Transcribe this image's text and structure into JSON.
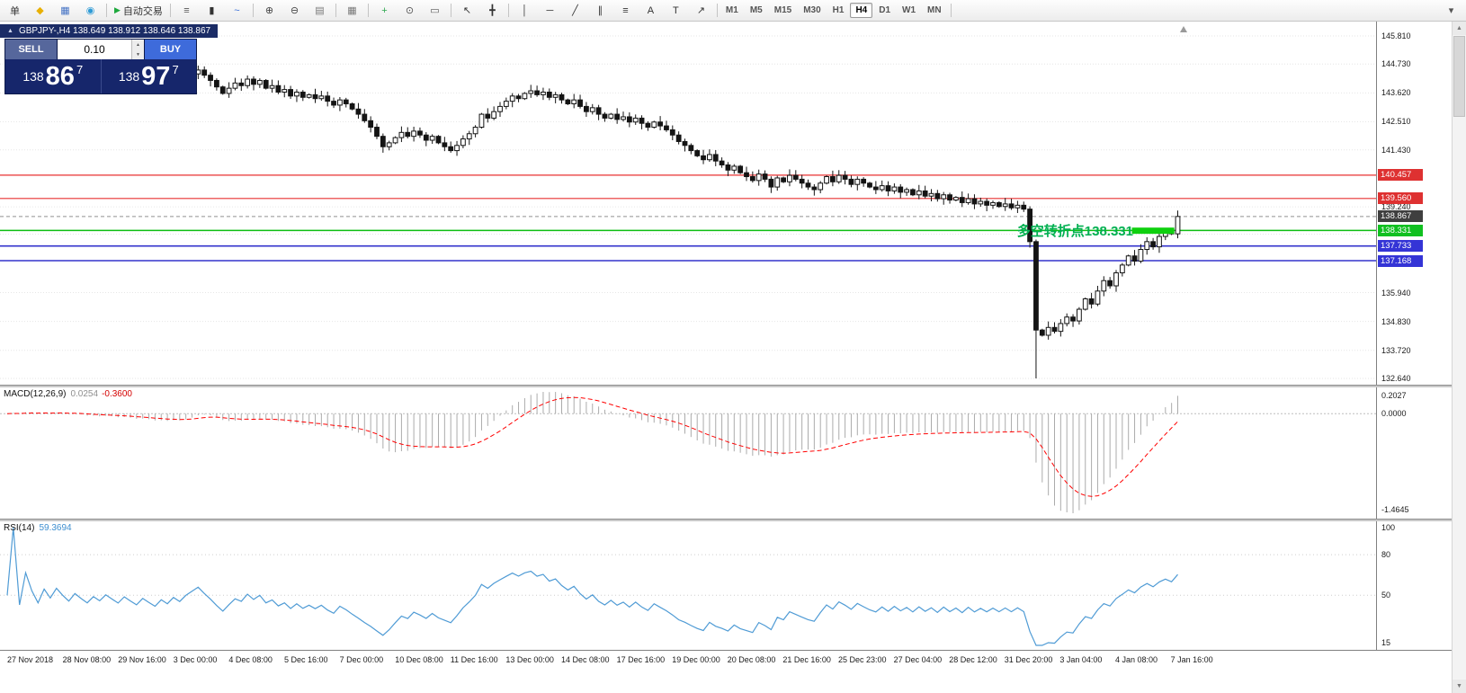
{
  "window": {
    "chart_title": "GBPJPY-,H4  138.649 138.912 138.646 138.867",
    "collapse_icon": "▲"
  },
  "toolbar": {
    "items": [
      {
        "n": "new-order-button",
        "t": "text",
        "g": "单"
      },
      {
        "n": "new-order-icon",
        "g": "◆",
        "c": "#E8B004"
      },
      {
        "n": "chart-window-icon",
        "g": "▦",
        "c": "#4472C4"
      },
      {
        "n": "profiles-icon",
        "g": "◉",
        "c": "#2E9BD6"
      },
      {
        "t": "sep"
      },
      {
        "n": "autotrading-button",
        "t": "text",
        "g": "自动交易",
        "play": "▶"
      },
      {
        "t": "sep"
      },
      {
        "n": "bar-chart-icon",
        "g": "≡",
        "c": "#555555"
      },
      {
        "n": "candlestick-chart-icon",
        "g": "▮",
        "c": "#333333"
      },
      {
        "n": "line-chart-icon",
        "g": "~",
        "c": "#3A6FD8"
      },
      {
        "t": "sep"
      },
      {
        "n": "zoom-in-icon",
        "g": "⊕",
        "c": "#444444"
      },
      {
        "n": "zoom-out-icon",
        "g": "⊖",
        "c": "#444444"
      },
      {
        "n": "auto-arrange-icon",
        "g": "▤",
        "c": "#777777"
      },
      {
        "t": "sep"
      },
      {
        "n": "tile-windows-icon",
        "g": "▦",
        "c": "#777777"
      },
      {
        "t": "sep"
      },
      {
        "n": "add-indicator-icon",
        "g": "+",
        "c": "#2FA84F"
      },
      {
        "n": "cycles-icon",
        "g": "⊙",
        "c": "#555555"
      },
      {
        "n": "template-icon",
        "g": "▭",
        "c": "#555555"
      },
      {
        "t": "sep"
      },
      {
        "n": "cursor-icon",
        "g": "↖",
        "c": "#333333"
      },
      {
        "n": "crosshair-icon",
        "g": "╋",
        "c": "#333333"
      },
      {
        "t": "sep"
      },
      {
        "n": "vertical-line-icon",
        "g": "│",
        "c": "#333333"
      },
      {
        "n": "horizontal-line-icon",
        "g": "─",
        "c": "#333333"
      },
      {
        "n": "trendline-icon",
        "g": "╱",
        "c": "#333333"
      },
      {
        "n": "channel-icon",
        "g": "∥",
        "c": "#333333"
      },
      {
        "n": "fibonacci-icon",
        "g": "≡",
        "c": "#333333"
      },
      {
        "n": "text-tool-icon",
        "g": "A",
        "c": "#333333"
      },
      {
        "n": "label-tool-icon",
        "g": "T",
        "c": "#333333"
      },
      {
        "n": "arrows-tool-icon",
        "g": "↗",
        "c": "#333333"
      },
      {
        "t": "sep"
      }
    ],
    "timeframes": [
      "M1",
      "M5",
      "M15",
      "M30",
      "H1",
      "H4",
      "D1",
      "W1",
      "MN"
    ],
    "active_timeframe": "H4",
    "right_items": [
      {
        "n": "toolbar-overflow-icon",
        "g": "▾",
        "c": "#555555"
      }
    ]
  },
  "trade_panel": {
    "sell_label": "SELL",
    "buy_label": "BUY",
    "volume": "0.10",
    "spin_up": "▲",
    "spin_down": "▼",
    "sell_price": {
      "prefix": "138",
      "big": "86",
      "sup": "7"
    },
    "buy_price": {
      "prefix": "138",
      "big": "97",
      "sup": "7"
    }
  },
  "annotation": {
    "text": "多空转折点138.331",
    "color": "#00B050"
  },
  "indicators": {
    "macd": {
      "label": "MACD(12,26,9)",
      "value_main": "0.0254",
      "value_signal": "-0.3600",
      "scale": [
        "0.2027",
        "0.0000",
        "-1.4645"
      ]
    },
    "rsi": {
      "label": "RSI(14)",
      "value": "59.3694",
      "scale": [
        "100",
        "80",
        "50",
        "15"
      ]
    }
  },
  "price_scale": {
    "ticks": [
      "145.810",
      "144.730",
      "143.620",
      "142.510",
      "141.430",
      "139.240",
      "138.190",
      "135.940",
      "134.830",
      "133.720",
      "132.640"
    ],
    "badges": [
      {
        "text": "140.457",
        "color": "#DE3131"
      },
      {
        "text": "139.560",
        "color": "#DE3131"
      },
      {
        "text": "138.867",
        "color": "#3F3F3F"
      },
      {
        "text": "138.331",
        "color": "#10C020"
      },
      {
        "text": "137.733",
        "color": "#3434D6"
      },
      {
        "text": "137.168",
        "color": "#3434D6"
      }
    ]
  },
  "hlines": [
    {
      "price": 140.457,
      "color": "#E83030",
      "w": 1.2
    },
    {
      "price": 139.56,
      "color": "#E83030",
      "w": 1.2
    },
    {
      "price": 138.867,
      "color": "#909090",
      "w": 1,
      "dash": "4,3"
    },
    {
      "price": 138.331,
      "color": "#0EBE12",
      "w": 1.6
    },
    {
      "price": 137.733,
      "color": "#3333CC",
      "w": 1.6
    },
    {
      "price": 137.168,
      "color": "#3333CC",
      "w": 1.6
    }
  ],
  "scrollbar": {
    "up": "▲",
    "down": "▼"
  },
  "chart_data": {
    "type": "candlestick",
    "symbol": "GBPJPY-",
    "timeframe": "H4",
    "last_ohlc": {
      "open": 138.649,
      "high": 138.912,
      "low": 138.646,
      "close": 138.867
    },
    "visible_price_range": [
      132.64,
      145.81
    ],
    "closes": [
      144.4,
      144.55,
      144.35,
      144.6,
      144.45,
      144.3,
      144.5,
      144.35,
      144.55,
      144.4,
      144.25,
      144.45,
      144.3,
      144.15,
      144.35,
      144.2,
      144.4,
      144.25,
      144.1,
      144.3,
      144.15,
      144.0,
      144.2,
      144.05,
      143.9,
      144.1,
      143.95,
      144.15,
      144.0,
      144.2,
      144.35,
      144.5,
      144.3,
      144.1,
      143.85,
      143.6,
      143.8,
      144.0,
      143.9,
      144.15,
      143.95,
      144.1,
      143.8,
      143.9,
      143.65,
      143.75,
      143.5,
      143.65,
      143.45,
      143.55,
      143.4,
      143.5,
      143.3,
      143.15,
      143.35,
      143.2,
      143.0,
      142.8,
      142.55,
      142.3,
      141.95,
      141.55,
      141.7,
      141.9,
      142.1,
      141.95,
      142.15,
      142.0,
      141.8,
      141.95,
      141.7,
      141.55,
      141.4,
      141.6,
      141.85,
      142.05,
      142.3,
      142.8,
      142.65,
      142.9,
      143.1,
      143.3,
      143.5,
      143.4,
      143.6,
      143.7,
      143.55,
      143.65,
      143.45,
      143.55,
      143.35,
      143.2,
      143.35,
      143.1,
      142.9,
      143.05,
      142.8,
      142.65,
      142.8,
      142.6,
      142.7,
      142.5,
      142.65,
      142.45,
      142.3,
      142.5,
      142.35,
      142.2,
      142.0,
      141.75,
      141.6,
      141.4,
      141.2,
      141.05,
      141.25,
      141.0,
      140.85,
      140.65,
      140.8,
      140.55,
      140.4,
      140.25,
      140.5,
      140.3,
      140.0,
      140.35,
      140.2,
      140.45,
      140.3,
      140.15,
      140.0,
      139.9,
      140.15,
      140.4,
      140.2,
      140.45,
      140.3,
      140.1,
      140.3,
      140.15,
      140.0,
      139.9,
      140.05,
      139.85,
      140.0,
      139.8,
      139.9,
      139.7,
      139.85,
      139.65,
      139.75,
      139.55,
      139.7,
      139.5,
      139.6,
      139.4,
      139.55,
      139.35,
      139.45,
      139.3,
      139.4,
      139.25,
      139.35,
      139.2,
      139.3,
      139.15,
      137.9,
      134.5,
      134.3,
      134.6,
      134.45,
      134.75,
      135.0,
      134.85,
      135.3,
      135.7,
      135.5,
      136.0,
      136.4,
      136.2,
      136.7,
      137.0,
      137.35,
      137.15,
      137.6,
      137.9,
      137.7,
      138.1,
      138.35,
      138.2,
      138.867
    ],
    "low_overrides": {
      "167": 132.64
    },
    "green_box": {
      "bar_from": 183,
      "bar_to": 189,
      "price_top": 138.44,
      "price_bottom": 138.2,
      "color": "#0FD00F"
    },
    "x_labels": [
      "27 Nov 2018",
      "28 Nov 08:00",
      "29 Nov 16:00",
      "3 Dec 00:00",
      "4 Dec 08:00",
      "5 Dec 16:00",
      "7 Dec 00:00",
      "10 Dec 08:00",
      "11 Dec 16:00",
      "13 Dec 00:00",
      "14 Dec 08:00",
      "17 Dec 16:00",
      "19 Dec 00:00",
      "20 Dec 08:00",
      "21 Dec 16:00",
      "25 Dec 23:00",
      "27 Dec 04:00",
      "28 Dec 12:00",
      "31 Dec 20:00",
      "3 Jan 04:00",
      "4 Jan 08:00",
      "7 Jan 16:00"
    ],
    "indicator_macd": {
      "fast": 12,
      "slow": 26,
      "signal": 9
    },
    "indicator_rsi": {
      "period": 14
    }
  }
}
